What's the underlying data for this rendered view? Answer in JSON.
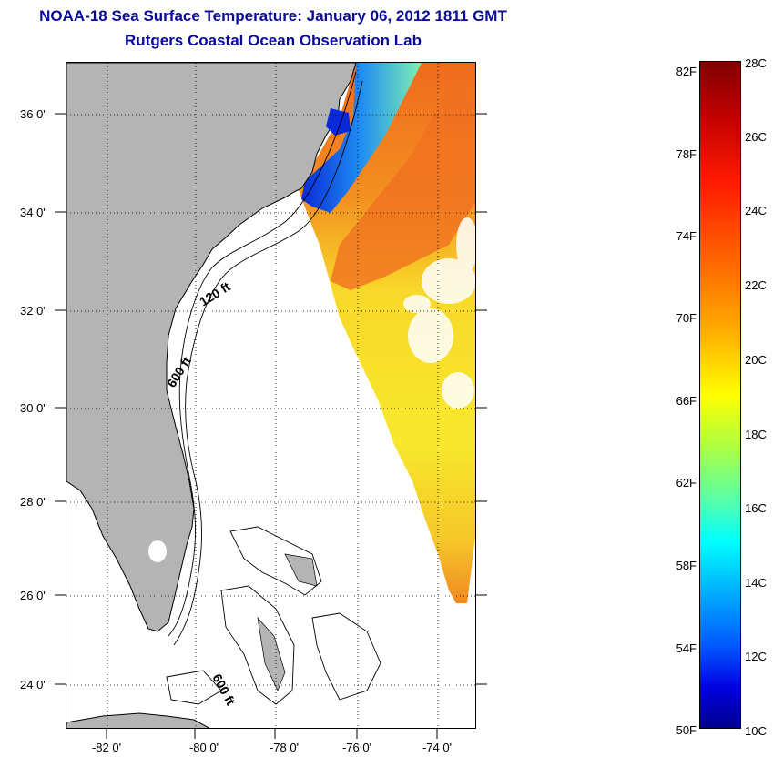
{
  "title": {
    "line1": "NOAA-18 Sea Surface Temperature:  January 06, 2012 1811 GMT",
    "line2": "Rutgers Coastal Ocean Observation Lab"
  },
  "map": {
    "lat_labels": [
      "36 0'",
      "34 0'",
      "32 0'",
      "30 0'",
      "28 0'",
      "26 0'",
      "24 0'"
    ],
    "lon_labels": [
      "-82 0'",
      "-80 0'",
      "-78 0'",
      "-76 0'",
      "-74 0'"
    ],
    "contour_labels": [
      "120 ft",
      "600 ft",
      "600 ft"
    ],
    "colors": {
      "land": "#b4b4b4",
      "no_data": "#ffffff",
      "coastline": "#000000"
    }
  },
  "colorbar": {
    "fahrenheit_labels": [
      "82F",
      "78F",
      "74F",
      "70F",
      "66F",
      "62F",
      "58F",
      "54F",
      "50F"
    ],
    "celsius_labels": [
      "28C",
      "26C",
      "24C",
      "22C",
      "20C",
      "18C",
      "16C",
      "14C",
      "12C",
      "10C"
    ],
    "range_celsius": [
      10,
      28
    ],
    "range_fahrenheit": [
      50,
      82
    ]
  }
}
